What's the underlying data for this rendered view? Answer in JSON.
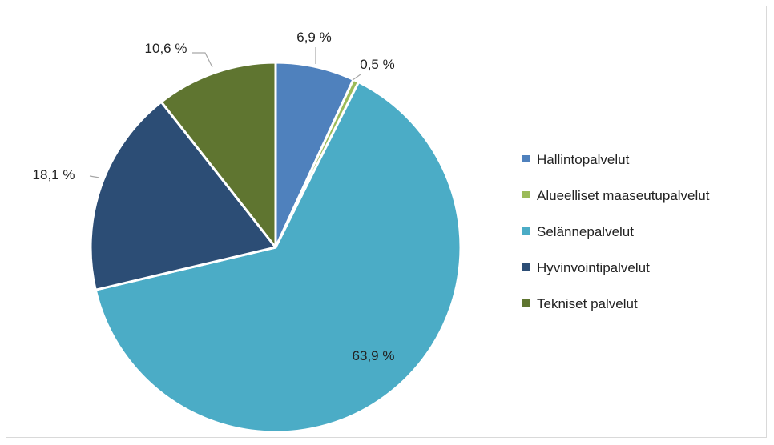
{
  "chart_data": {
    "type": "pie",
    "title": "",
    "categories": [
      "Hallintopalvelut",
      "Alueelliset maaseutupalvelut",
      "Selännepalvelut",
      "Hyvinvointipalvelut",
      "Tekniset palvelut"
    ],
    "values": [
      6.9,
      0.5,
      63.9,
      18.1,
      10.6
    ],
    "value_labels": [
      "6,9 %",
      "0,5 %",
      "63,9 %",
      "18,1 %",
      "10,6 %"
    ],
    "colors": [
      "#4f81bd",
      "#9bbb59",
      "#4bacc6",
      "#2c4d75",
      "#5f7530"
    ],
    "legend_position": "right"
  }
}
